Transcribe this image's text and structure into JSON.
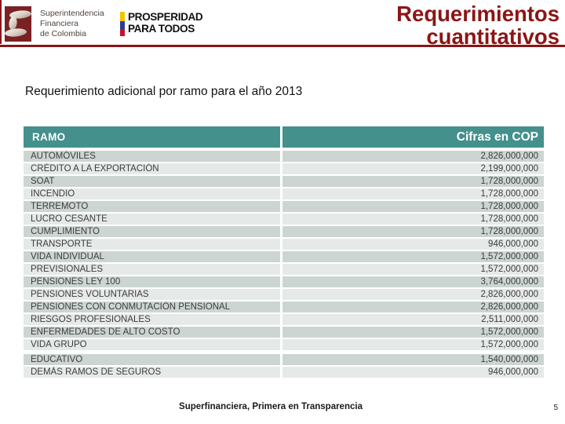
{
  "header": {
    "org": {
      "lines": [
        "Superintendencia",
        "Financiera",
        "de Colombia"
      ]
    },
    "prosperidad": {
      "line1": "PROSPERIDAD",
      "line2": "PARA TODOS"
    },
    "title_line1": "Requerimientos",
    "title_line2": "cuantitativos"
  },
  "subtitle": "Requerimiento adicional por ramo para el año 2013",
  "table": {
    "col1_header": "RAMO",
    "col2_header": "Cifras en COP",
    "rows": [
      {
        "ramo": "AUTOMÓVILES",
        "valor": "2,826,000,000"
      },
      {
        "ramo": "CRÉDITO A LA EXPORTACIÓN",
        "valor": "2,199,000,000"
      },
      {
        "ramo": "SOAT",
        "valor": "1,728,000,000"
      },
      {
        "ramo": "INCENDIO",
        "valor": "1,728,000,000"
      },
      {
        "ramo": "TERREMOTO",
        "valor": "1,728,000,000"
      },
      {
        "ramo": "LUCRO CESANTE",
        "valor": "1,728,000,000"
      },
      {
        "ramo": "CUMPLIMIENTO",
        "valor": "1,728,000,000"
      },
      {
        "ramo": "TRANSPORTE",
        "valor": "946,000,000"
      },
      {
        "ramo": "VIDA INDIVIDUAL",
        "valor": "1,572,000,000"
      },
      {
        "ramo": "PREVISIONALES",
        "valor": "1,572,000,000"
      },
      {
        "ramo": "PENSIONES LEY 100",
        "valor": "3,764,000,000"
      },
      {
        "ramo": "PENSIONES VOLUNTARIAS",
        "valor": "2,826,000,000"
      },
      {
        "ramo": "PENSIONES CON CONMUTACIÓN PENSIONAL",
        "valor": "2,826,000,000"
      },
      {
        "ramo": "RIESGOS PROFESIONALES",
        "valor": "2,511,000,000"
      },
      {
        "ramo": "ENFERMEDADES DE ALTO COSTO",
        "valor": "1,572,000,000"
      },
      {
        "ramo": "VIDA GRUPO",
        "valor": "1,572,000,000"
      },
      {
        "ramo": "EDUCATIVO",
        "valor": "1,540,000,000",
        "gap_before": true
      },
      {
        "ramo": "DEMÁS RAMOS DE SEGUROS",
        "valor": "946,000,000"
      }
    ]
  },
  "footer": {
    "text": "Superfinanciera, Primera en Transparencia",
    "page_number": "5"
  },
  "colors": {
    "accent_red": "#8c1515",
    "logo_maroon": "#7b2125",
    "header_teal": "#44908d",
    "row_dark": "#ccd5d2",
    "row_light": "#e5e9e8",
    "flag_yellow": "#f3c300",
    "flag_blue": "#27418c",
    "flag_red": "#c8102e"
  }
}
